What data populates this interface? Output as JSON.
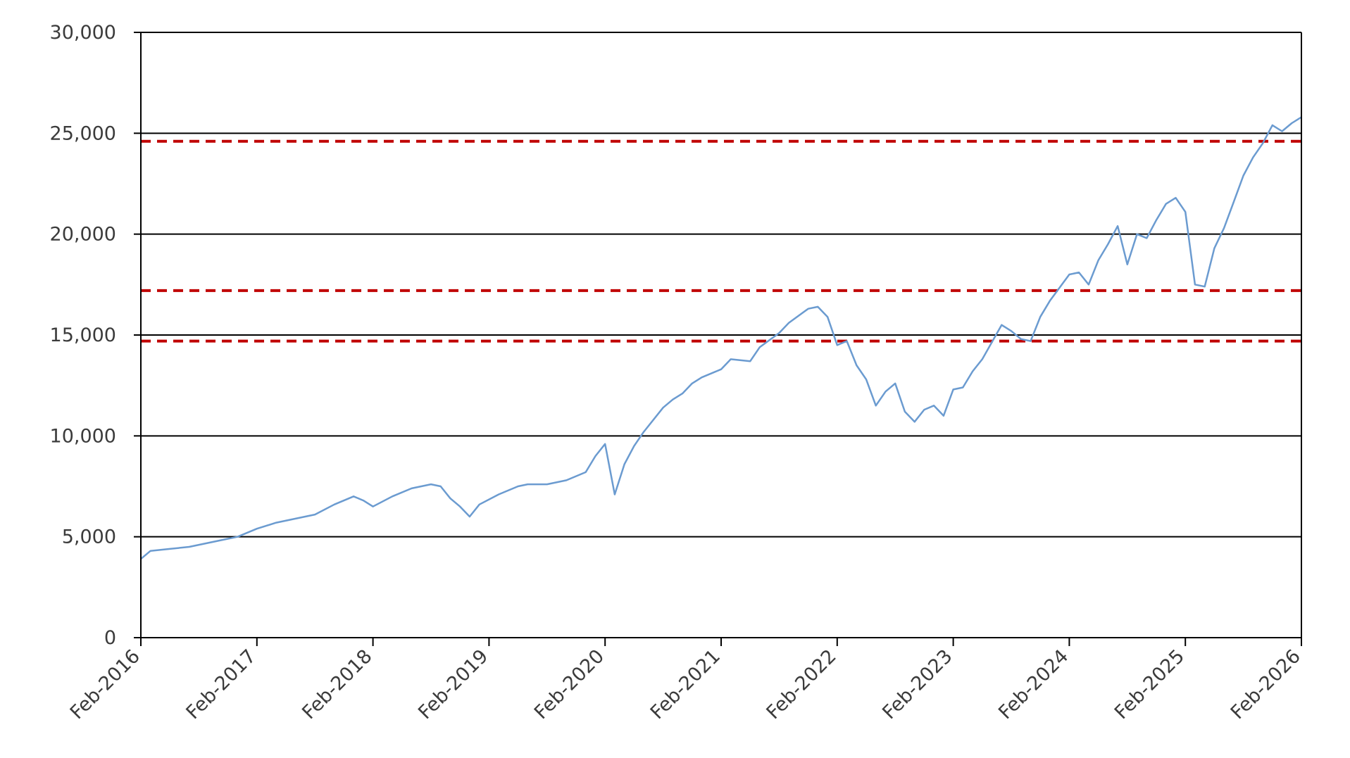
{
  "chart_data": {
    "type": "line",
    "title": "",
    "xlabel": "",
    "ylabel": "",
    "xlim": [
      "2016-02",
      "2026-02"
    ],
    "ylim": [
      0,
      30000
    ],
    "y_ticks": [
      0,
      5000,
      10000,
      15000,
      20000,
      25000,
      30000
    ],
    "y_tick_labels": [
      "0",
      "5,000",
      "10,000",
      "15,000",
      "20,000",
      "25,000",
      "30,000"
    ],
    "x_ticks": [
      "2016-02",
      "2017-02",
      "2018-02",
      "2019-02",
      "2020-02",
      "2021-02",
      "2022-02",
      "2023-02",
      "2024-02",
      "2025-02",
      "2026-02"
    ],
    "x_tick_labels": [
      "Feb-2016",
      "Feb-2017",
      "Feb-2018",
      "Feb-2019",
      "Feb-2020",
      "Feb-2021",
      "Feb-2022",
      "Feb-2023",
      "Feb-2024",
      "Feb-2025",
      "Feb-2026"
    ],
    "grid": "horizontal",
    "legend": "none",
    "reference_lines": [
      24600,
      17200,
      14700
    ],
    "colors": {
      "series": "#6b9bd0",
      "reference": "#c00000",
      "grid": "#000000"
    },
    "series": [
      {
        "x": [
          "2016-02",
          "2016-03",
          "2016-05",
          "2016-07",
          "2016-08",
          "2016-10",
          "2016-12",
          "2017-02",
          "2017-04",
          "2017-06",
          "2017-08",
          "2017-10",
          "2017-12",
          "2018-01",
          "2018-02",
          "2018-04",
          "2018-06",
          "2018-08",
          "2018-09",
          "2018-10",
          "2018-11",
          "2018-12",
          "2019-01",
          "2019-03",
          "2019-05",
          "2019-06",
          "2019-08",
          "2019-10",
          "2019-12",
          "2020-01",
          "2020-02",
          "2020-03",
          "2020-04",
          "2020-05",
          "2020-06",
          "2020-08",
          "2020-09",
          "2020-10",
          "2020-11",
          "2020-12",
          "2021-02",
          "2021-03",
          "2021-05",
          "2021-06",
          "2021-08",
          "2021-09",
          "2021-11",
          "2021-12",
          "2022-01",
          "2022-02",
          "2022-03",
          "2022-04",
          "2022-05",
          "2022-06",
          "2022-07",
          "2022-08",
          "2022-09",
          "2022-10",
          "2022-11",
          "2022-12",
          "2023-01",
          "2023-02",
          "2023-03",
          "2023-04",
          "2023-05",
          "2023-07",
          "2023-08",
          "2023-09",
          "2023-10",
          "2023-11",
          "2023-12",
          "2024-02",
          "2024-03",
          "2024-04",
          "2024-05",
          "2024-06",
          "2024-07",
          "2024-08",
          "2024-09",
          "2024-10",
          "2024-11",
          "2024-12",
          "2025-01",
          "2025-02",
          "2025-03",
          "2025-04",
          "2025-05",
          "2025-06",
          "2025-07",
          "2025-08",
          "2025-09",
          "2025-10",
          "2025-11",
          "2025-12",
          "2026-01",
          "2026-02"
        ],
        "y": [
          3900,
          4300,
          4400,
          4500,
          4600,
          4800,
          5000,
          5400,
          5700,
          5900,
          6100,
          6600,
          7000,
          6800,
          6500,
          7000,
          7400,
          7600,
          7500,
          6900,
          6500,
          6000,
          6600,
          7100,
          7500,
          7600,
          7600,
          7800,
          8200,
          9000,
          9600,
          7100,
          8600,
          9500,
          10200,
          11400,
          11800,
          12100,
          12600,
          12900,
          13300,
          13800,
          13700,
          14400,
          15100,
          15600,
          16300,
          16400,
          15900,
          14500,
          14700,
          13500,
          12800,
          11500,
          12200,
          12600,
          11200,
          10700,
          11300,
          11500,
          11000,
          12300,
          12400,
          13200,
          13800,
          15500,
          15200,
          14800,
          14700,
          15900,
          16700,
          18000,
          18100,
          17500,
          18700,
          19500,
          20400,
          18500,
          20000,
          19800,
          20700,
          21500,
          21800,
          21100,
          17500,
          17400,
          19300,
          20300,
          21600,
          22900,
          23800,
          24500,
          25400,
          25100,
          25500,
          25800
        ]
      }
    ]
  }
}
